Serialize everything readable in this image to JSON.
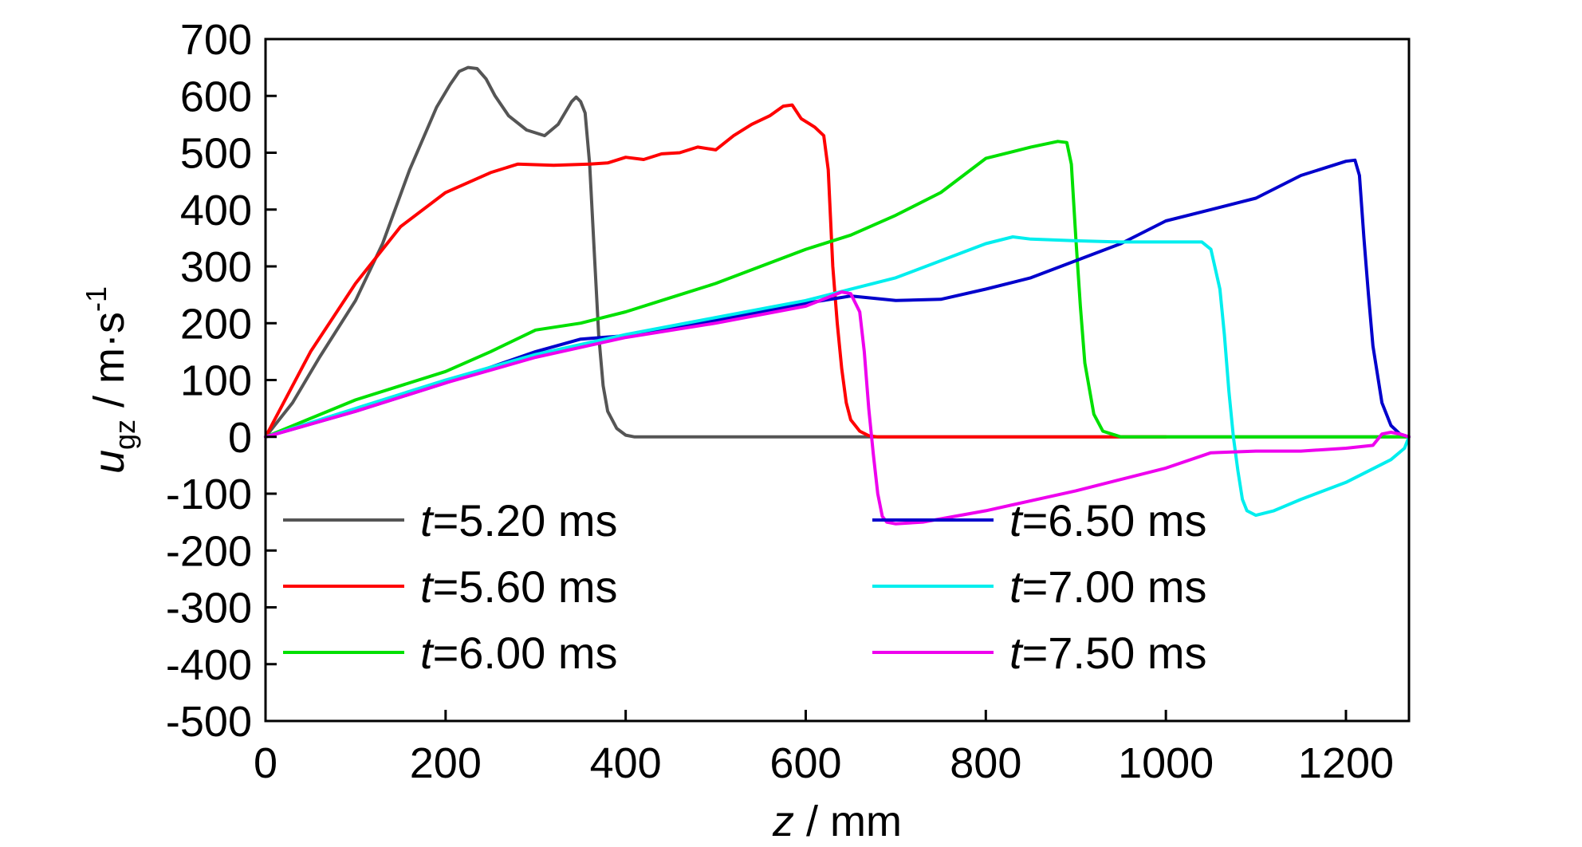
{
  "chart_data": {
    "type": "line",
    "xlabel": {
      "var": "z",
      "unit": " / mm"
    },
    "ylabel": {
      "var": "u",
      "sub": "gz",
      "unit": " / m·s",
      "sup": "-1"
    },
    "xlim": [
      0,
      1270
    ],
    "ylim": [
      -500,
      700
    ],
    "xticks": [
      0,
      200,
      400,
      600,
      800,
      1000,
      1200
    ],
    "yticks": [
      700,
      600,
      500,
      400,
      300,
      200,
      100,
      0,
      -100,
      -200,
      -300,
      -400,
      -500
    ],
    "grid": false,
    "legend_position": "lower-left, two columns",
    "series": [
      {
        "name": "t=5.20 ms",
        "name_var": "t",
        "name_rest": "=5.20 ms",
        "color": "#555555",
        "x": [
          0,
          30,
          60,
          100,
          130,
          160,
          190,
          205,
          215,
          225,
          235,
          245,
          255,
          270,
          290,
          310,
          325,
          340,
          345,
          350,
          355,
          360,
          365,
          370,
          375,
          380,
          390,
          400,
          410,
          420,
          500,
          700,
          900,
          1100,
          1270
        ],
        "y": [
          0,
          60,
          140,
          240,
          340,
          470,
          580,
          620,
          643,
          650,
          648,
          630,
          600,
          565,
          540,
          530,
          550,
          590,
          598,
          590,
          570,
          480,
          330,
          180,
          90,
          45,
          15,
          3,
          0,
          0,
          0,
          0,
          0,
          0,
          0
        ]
      },
      {
        "name": "t=5.60 ms",
        "name_var": "t",
        "name_rest": "=5.60 ms",
        "color": "#ff0000",
        "x": [
          0,
          50,
          100,
          150,
          200,
          250,
          280,
          320,
          360,
          380,
          400,
          420,
          440,
          460,
          480,
          500,
          520,
          540,
          560,
          575,
          585,
          595,
          610,
          620,
          625,
          630,
          635,
          640,
          645,
          650,
          660,
          670,
          680,
          700,
          800,
          950,
          1000
        ],
        "y": [
          0,
          150,
          270,
          370,
          430,
          465,
          480,
          478,
          480,
          482,
          492,
          488,
          498,
          500,
          510,
          505,
          530,
          550,
          565,
          582,
          584,
          560,
          545,
          530,
          470,
          300,
          200,
          120,
          60,
          30,
          10,
          2,
          0,
          0,
          0,
          0,
          0
        ]
      },
      {
        "name": "t=6.00 ms",
        "name_var": "t",
        "name_rest": "=6.00 ms",
        "color": "#00e000",
        "x": [
          0,
          100,
          200,
          250,
          300,
          350,
          400,
          450,
          500,
          550,
          600,
          650,
          700,
          750,
          800,
          850,
          880,
          890,
          895,
          900,
          905,
          910,
          920,
          930,
          950,
          1000,
          1270
        ],
        "y": [
          0,
          65,
          115,
          150,
          188,
          200,
          220,
          245,
          270,
          300,
          330,
          355,
          390,
          430,
          490,
          510,
          520,
          518,
          480,
          350,
          230,
          130,
          40,
          10,
          0,
          0,
          0
        ]
      },
      {
        "name": "t=6.50 ms",
        "name_var": "t",
        "name_rest": "=6.50 ms",
        "color": "#0000cc",
        "x": [
          0,
          100,
          200,
          300,
          350,
          400,
          450,
          500,
          550,
          600,
          650,
          700,
          750,
          800,
          850,
          900,
          950,
          1000,
          1050,
          1100,
          1150,
          1200,
          1210,
          1215,
          1220,
          1225,
          1230,
          1240,
          1250,
          1260,
          1270
        ],
        "y": [
          0,
          45,
          95,
          150,
          172,
          178,
          190,
          205,
          220,
          235,
          248,
          240,
          242,
          260,
          280,
          310,
          340,
          380,
          400,
          420,
          460,
          485,
          487,
          460,
          350,
          250,
          160,
          60,
          20,
          5,
          0
        ]
      },
      {
        "name": "t=7.00 ms",
        "name_var": "t",
        "name_rest": "=7.00 ms",
        "color": "#00eeee",
        "x": [
          0,
          100,
          200,
          300,
          400,
          500,
          600,
          700,
          800,
          830,
          850,
          900,
          950,
          1000,
          1040,
          1050,
          1060,
          1065,
          1070,
          1075,
          1080,
          1085,
          1090,
          1100,
          1120,
          1150,
          1200,
          1250,
          1265,
          1270
        ],
        "y": [
          0,
          50,
          100,
          145,
          180,
          210,
          240,
          280,
          340,
          352,
          348,
          345,
          343,
          343,
          343,
          330,
          260,
          180,
          80,
          0,
          -60,
          -110,
          -130,
          -138,
          -130,
          -110,
          -80,
          -40,
          -20,
          0
        ]
      },
      {
        "name": "t=7.50 ms",
        "name_var": "t",
        "name_rest": "=7.50 ms",
        "color": "#ee00ee",
        "x": [
          0,
          100,
          200,
          300,
          400,
          500,
          600,
          640,
          650,
          660,
          665,
          670,
          675,
          680,
          685,
          690,
          700,
          730,
          800,
          900,
          1000,
          1050,
          1100,
          1150,
          1200,
          1230,
          1240,
          1250,
          1260,
          1270
        ],
        "y": [
          0,
          45,
          95,
          140,
          175,
          200,
          230,
          255,
          252,
          220,
          150,
          50,
          -30,
          -100,
          -140,
          -150,
          -153,
          -150,
          -130,
          -95,
          -55,
          -28,
          -25,
          -25,
          -20,
          -15,
          5,
          8,
          5,
          0
        ]
      }
    ]
  }
}
